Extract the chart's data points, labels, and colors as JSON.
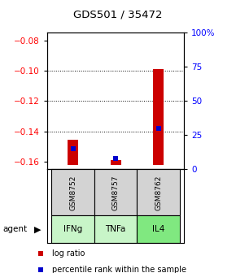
{
  "title": "GDS501 / 35472",
  "samples": [
    "GSM8752",
    "GSM8757",
    "GSM8762"
  ],
  "agents": [
    "IFNg",
    "TNFa",
    "IL4"
  ],
  "agent_colors": [
    "#c8f5c8",
    "#c8f5c8",
    "#80e880"
  ],
  "log_ratios": [
    -0.1455,
    -0.159,
    -0.099
  ],
  "baseline": -0.162,
  "percentile_ranks": [
    15,
    8,
    30
  ],
  "ylim_left": [
    -0.165,
    -0.075
  ],
  "ylim_right": [
    0,
    100
  ],
  "yticks_left": [
    -0.16,
    -0.14,
    -0.12,
    -0.1,
    -0.08
  ],
  "yticks_right": [
    0,
    25,
    50,
    75,
    100
  ],
  "ytick_labels_right": [
    "0",
    "25",
    "50",
    "75",
    "100%"
  ],
  "bar_color": "#cc0000",
  "dot_color": "#0000cc",
  "legend_items": [
    "log ratio",
    "percentile rank within the sample"
  ]
}
